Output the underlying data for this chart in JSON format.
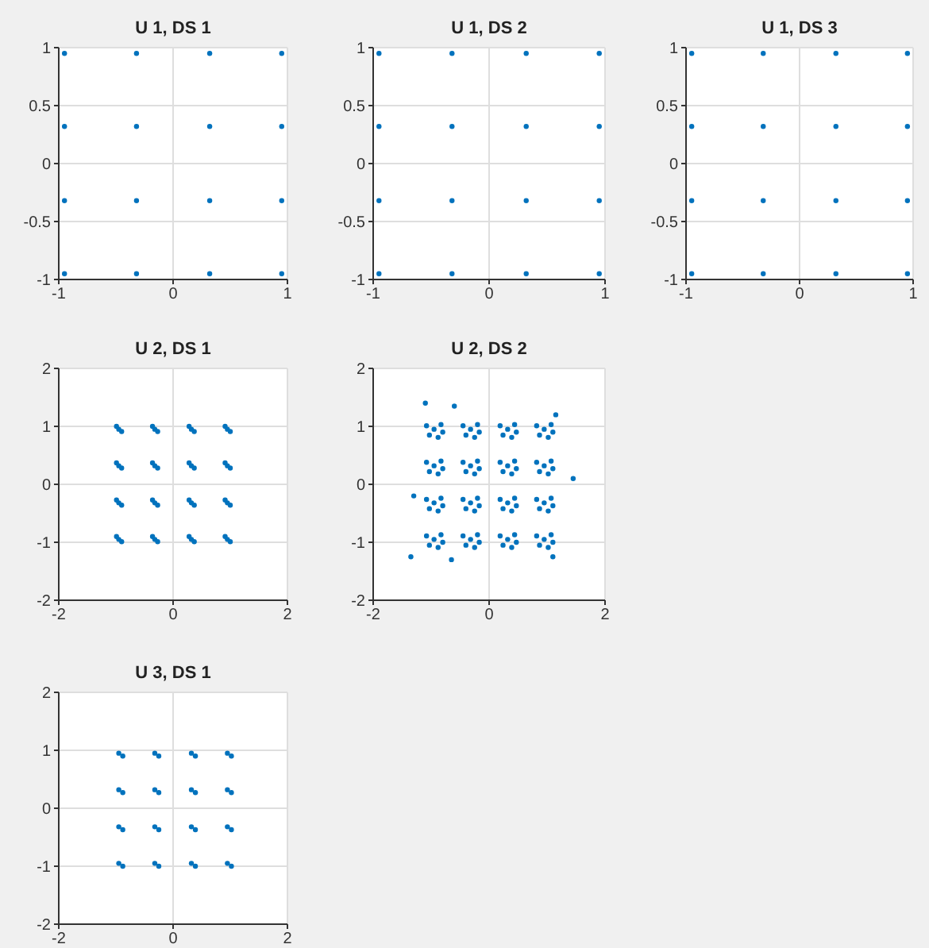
{
  "chart_data": [
    {
      "type": "scatter",
      "title": "U 1, DS 1",
      "color": "#0072bd",
      "marker": "circle",
      "grid": true,
      "xlim": [
        -1,
        1
      ],
      "ylim": [
        -1,
        1
      ],
      "xticks": [
        -1,
        0,
        1
      ],
      "yticks": [
        -1,
        -0.5,
        0,
        0.5,
        1
      ],
      "x": [
        -0.95,
        -0.32,
        0.32,
        0.95,
        -0.95,
        -0.32,
        0.32,
        0.95,
        -0.95,
        -0.32,
        0.32,
        0.95,
        -0.95,
        -0.32,
        0.32,
        0.95
      ],
      "values": [
        0.95,
        0.95,
        0.95,
        0.95,
        0.32,
        0.32,
        0.32,
        0.32,
        -0.32,
        -0.32,
        -0.32,
        -0.32,
        -0.95,
        -0.95,
        -0.95,
        -0.95
      ]
    },
    {
      "type": "scatter",
      "title": "U 1, DS 2",
      "color": "#0072bd",
      "marker": "circle",
      "grid": true,
      "xlim": [
        -1,
        1
      ],
      "ylim": [
        -1,
        1
      ],
      "xticks": [
        -1,
        0,
        1
      ],
      "yticks": [
        -1,
        -0.5,
        0,
        0.5,
        1
      ],
      "x": [
        -0.95,
        -0.32,
        0.32,
        0.95,
        -0.95,
        -0.32,
        0.32,
        0.95,
        -0.95,
        -0.32,
        0.32,
        0.95,
        -0.95,
        -0.32,
        0.32,
        0.95
      ],
      "values": [
        0.95,
        0.95,
        0.95,
        0.95,
        0.32,
        0.32,
        0.32,
        0.32,
        -0.32,
        -0.32,
        -0.32,
        -0.32,
        -0.95,
        -0.95,
        -0.95,
        -0.95
      ]
    },
    {
      "type": "scatter",
      "title": "U 1, DS 3",
      "color": "#0072bd",
      "marker": "circle",
      "grid": true,
      "xlim": [
        -1,
        1
      ],
      "ylim": [
        -1,
        1
      ],
      "xticks": [
        -1,
        0,
        1
      ],
      "yticks": [
        -1,
        -0.5,
        0,
        0.5,
        1
      ],
      "x": [
        -0.95,
        -0.32,
        0.32,
        0.95,
        -0.95,
        -0.32,
        0.32,
        0.95,
        -0.95,
        -0.32,
        0.32,
        0.95,
        -0.95,
        -0.32,
        0.32,
        0.95
      ],
      "values": [
        0.95,
        0.95,
        0.95,
        0.95,
        0.32,
        0.32,
        0.32,
        0.32,
        -0.32,
        -0.32,
        -0.32,
        -0.32,
        -0.95,
        -0.95,
        -0.95,
        -0.95
      ]
    },
    {
      "type": "scatter",
      "title": "U 2, DS 1",
      "color": "#0072bd",
      "marker": "circle",
      "grid": true,
      "xlim": [
        -2,
        2
      ],
      "ylim": [
        -2,
        2
      ],
      "xticks": [
        -2,
        0,
        2
      ],
      "yticks": [
        -2,
        -1,
        0,
        1,
        2
      ],
      "x": [
        -0.95,
        -0.9,
        -0.99,
        -0.32,
        -0.27,
        -0.36,
        0.32,
        0.37,
        0.28,
        0.95,
        1,
        0.91,
        -0.95,
        -0.9,
        -0.99,
        -0.32,
        -0.27,
        -0.36,
        0.32,
        0.37,
        0.28,
        0.95,
        1,
        0.91,
        -0.95,
        -0.9,
        -0.99,
        -0.32,
        -0.27,
        -0.36,
        0.32,
        0.37,
        0.28,
        0.95,
        1,
        0.91,
        -0.95,
        -0.9,
        -0.99,
        -0.32,
        -0.27,
        -0.36,
        0.32,
        0.37,
        0.28,
        0.95,
        1,
        0.91
      ],
      "values": [
        0.95,
        0.91,
        1,
        0.95,
        0.91,
        1,
        0.95,
        0.91,
        1,
        0.95,
        0.91,
        1,
        0.32,
        0.28,
        0.37,
        0.32,
        0.28,
        0.37,
        0.32,
        0.28,
        0.37,
        0.32,
        0.28,
        0.37,
        -0.32,
        -0.36,
        -0.27,
        -0.32,
        -0.36,
        -0.27,
        -0.32,
        -0.36,
        -0.27,
        -0.32,
        -0.36,
        -0.27,
        -0.95,
        -0.99,
        -0.9,
        -0.95,
        -0.99,
        -0.9,
        -0.95,
        -0.99,
        -0.9,
        -0.95,
        -0.99,
        -0.9
      ]
    },
    {
      "type": "scatter",
      "title": "U 2, DS 2",
      "color": "#0072bd",
      "marker": "circle",
      "grid": true,
      "xlim": [
        -2,
        2
      ],
      "ylim": [
        -2,
        2
      ],
      "xticks": [
        -2,
        0,
        2
      ],
      "yticks": [
        -2,
        -1,
        0,
        1,
        2
      ],
      "x": [
        -0.95,
        -0.83,
        -1.08,
        -0.88,
        -1.03,
        -0.8,
        -0.32,
        -0.2,
        -0.45,
        -0.25,
        -0.4,
        -0.17,
        0.32,
        0.44,
        0.19,
        0.39,
        0.24,
        0.47,
        0.95,
        1.07,
        0.82,
        1.02,
        0.87,
        1.1,
        -0.95,
        -0.83,
        -1.08,
        -0.88,
        -1.03,
        -0.8,
        -0.32,
        -0.2,
        -0.45,
        -0.25,
        -0.4,
        -0.17,
        0.32,
        0.44,
        0.19,
        0.39,
        0.24,
        0.47,
        0.95,
        1.07,
        0.82,
        1.02,
        0.87,
        1.1,
        -0.95,
        -0.83,
        -1.08,
        -0.88,
        -1.03,
        -0.8,
        -0.32,
        -0.2,
        -0.45,
        -0.25,
        -0.4,
        -0.17,
        0.32,
        0.44,
        0.19,
        0.39,
        0.24,
        0.47,
        0.95,
        1.07,
        0.82,
        1.02,
        0.87,
        1.1,
        -0.95,
        -0.83,
        -1.08,
        -0.88,
        -1.03,
        -0.8,
        -0.32,
        -0.2,
        -0.45,
        -0.25,
        -0.4,
        -0.17,
        0.32,
        0.44,
        0.19,
        0.39,
        0.24,
        0.47,
        0.95,
        1.07,
        0.82,
        1.02,
        0.87,
        1.1,
        -1.1,
        1.45,
        -1.35,
        -0.65,
        1.15,
        -1.3,
        1.1,
        -0.6
      ],
      "values": [
        0.95,
        1.03,
        1.01,
        0.81,
        0.85,
        0.9,
        0.95,
        1.03,
        1.01,
        0.81,
        0.85,
        0.9,
        0.95,
        1.03,
        1.01,
        0.81,
        0.85,
        0.9,
        0.95,
        1.03,
        1.01,
        0.81,
        0.85,
        0.9,
        0.32,
        0.4,
        0.38,
        0.18,
        0.22,
        0.27,
        0.32,
        0.4,
        0.38,
        0.18,
        0.22,
        0.27,
        0.32,
        0.4,
        0.38,
        0.18,
        0.22,
        0.27,
        0.32,
        0.4,
        0.38,
        0.18,
        0.22,
        0.27,
        -0.32,
        -0.24,
        -0.26,
        -0.46,
        -0.42,
        -0.37,
        -0.32,
        -0.24,
        -0.26,
        -0.46,
        -0.42,
        -0.37,
        -0.32,
        -0.24,
        -0.26,
        -0.46,
        -0.42,
        -0.37,
        -0.32,
        -0.24,
        -0.26,
        -0.46,
        -0.42,
        -0.37,
        -0.95,
        -0.87,
        -0.89,
        -1.09,
        -1.05,
        -1,
        -0.95,
        -0.87,
        -0.89,
        -1.09,
        -1.05,
        -1,
        -0.95,
        -0.87,
        -0.89,
        -1.09,
        -1.05,
        -1,
        -0.95,
        -0.87,
        -0.89,
        -1.09,
        -1.05,
        -1,
        1.4,
        0.1,
        -1.25,
        -1.3,
        1.2,
        -0.2,
        -1.25,
        1.35
      ]
    },
    {
      "type": "scatter",
      "title": "U 3, DS 1",
      "color": "#0072bd",
      "marker": "circle",
      "grid": true,
      "xlim": [
        -2,
        2
      ],
      "ylim": [
        -2,
        2
      ],
      "xticks": [
        -2,
        0,
        2
      ],
      "yticks": [
        -2,
        -1,
        0,
        1,
        2
      ],
      "x": [
        -0.95,
        -0.88,
        -0.32,
        -0.25,
        0.32,
        0.39,
        0.95,
        1.02,
        -0.95,
        -0.88,
        -0.32,
        -0.25,
        0.32,
        0.39,
        0.95,
        1.02,
        -0.95,
        -0.88,
        -0.32,
        -0.25,
        0.32,
        0.39,
        0.95,
        1.02,
        -0.95,
        -0.88,
        -0.32,
        -0.25,
        0.32,
        0.39,
        0.95,
        1.02
      ],
      "values": [
        0.95,
        0.9,
        0.95,
        0.9,
        0.95,
        0.9,
        0.95,
        0.9,
        0.32,
        0.27,
        0.32,
        0.27,
        0.32,
        0.27,
        0.32,
        0.27,
        -0.32,
        -0.37,
        -0.32,
        -0.37,
        -0.32,
        -0.37,
        -0.32,
        -0.37,
        -0.95,
        -1,
        -0.95,
        -1,
        -0.95,
        -1,
        -0.95,
        -1
      ]
    }
  ]
}
